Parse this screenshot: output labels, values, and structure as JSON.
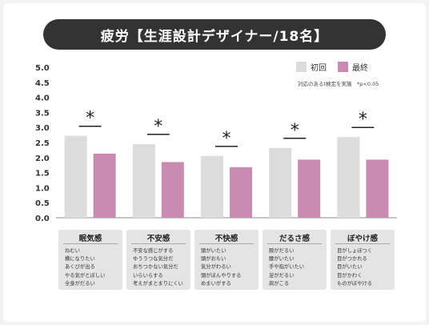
{
  "title": "疲労【生涯設計デザイナー/18名】",
  "legend": [
    {
      "label": "初回",
      "color": "#dcdcdc"
    },
    {
      "label": "最終",
      "color": "#c98bb0"
    }
  ],
  "note": "対応のあるt検定を実施　*p<0.05",
  "chart_data": {
    "type": "bar",
    "categories": [
      "眠気感",
      "不安感",
      "不快感",
      "だるさ感",
      "ぼやけ感"
    ],
    "series": [
      {
        "name": "初回",
        "values": [
          2.72,
          2.45,
          2.05,
          2.32,
          2.68
        ],
        "color": "#dcdcdc"
      },
      {
        "name": "最終",
        "values": [
          2.13,
          1.85,
          1.68,
          1.93,
          1.93
        ],
        "color": "#c98bb0"
      }
    ],
    "significance": [
      "*",
      "*",
      "*",
      "*",
      "*"
    ],
    "ylim": [
      0,
      5
    ],
    "yticks": [
      "0.0",
      "0.5",
      "1.0",
      "1.5",
      "2.0",
      "2.5",
      "3.0",
      "3.5",
      "4.0",
      "4.5",
      "5.0"
    ],
    "grid": false
  },
  "categories_detail": [
    {
      "title": "眠気感",
      "items": [
        "ねむい",
        "横になりたい",
        "あくびが出る",
        "やる気がとぼしい",
        "全身がだるい"
      ]
    },
    {
      "title": "不安感",
      "items": [
        "不安な感じがする",
        "ゆううつな気分だ",
        "おちつかない気分だ",
        "いらいらする",
        "考えがまとまりにくい"
      ]
    },
    {
      "title": "不快感",
      "items": [
        "頭がいたい",
        "頭がおもい",
        "気分がわるい",
        "頭がぼんやりする",
        "めまいがする"
      ]
    },
    {
      "title": "だるさ感",
      "items": [
        "腕がだるい",
        "腰がいたい",
        "手や指がいたい",
        "足がだるい",
        "肩がこる"
      ]
    },
    {
      "title": "ぼやけ感",
      "items": [
        "目がしょぼつく",
        "目がつかれる",
        "目がいたい",
        "目がかわく",
        "ものがぼやける"
      ]
    }
  ]
}
